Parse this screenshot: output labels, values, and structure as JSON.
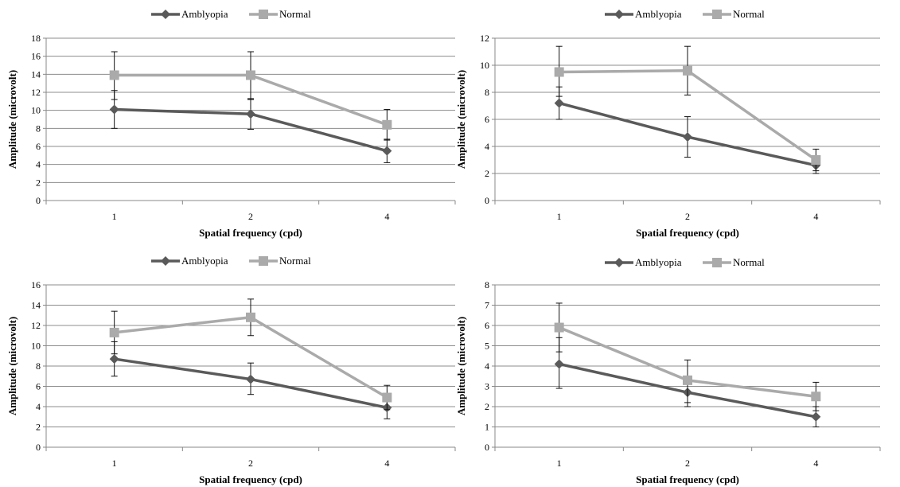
{
  "chart_data": [
    {
      "type": "line",
      "categories": [
        "1",
        "2",
        "4"
      ],
      "xlabel": "Spatial frequency (cpd)",
      "ylabel": "Amplitude (microvolt)",
      "ylim": [
        0,
        18
      ],
      "ystep": 2,
      "grid": true,
      "legend": "top",
      "series": [
        {
          "name": "Amblyopia",
          "color": "#5a5a5a",
          "marker": "diamond",
          "values": [
            10.1,
            9.6,
            5.5
          ],
          "err_high": [
            12.2,
            11.3,
            6.8
          ],
          "err_low": [
            8.0,
            7.9,
            4.2
          ]
        },
        {
          "name": "Normal",
          "color": "#aaaaaa",
          "marker": "square",
          "values": [
            13.9,
            13.9,
            8.4
          ],
          "err_high": [
            16.5,
            16.5,
            10.1
          ],
          "err_low": [
            11.2,
            11.2,
            6.7
          ]
        }
      ]
    },
    {
      "type": "line",
      "categories": [
        "1",
        "2",
        "4"
      ],
      "xlabel": "Spatial frequency (cpd)",
      "ylabel": "Amplitude (microvolt)",
      "ylim": [
        0,
        12
      ],
      "ystep": 2,
      "grid": true,
      "legend": "top",
      "series": [
        {
          "name": "Amblyopia",
          "color": "#5a5a5a",
          "marker": "diamond",
          "values": [
            7.2,
            4.7,
            2.6
          ],
          "err_high": [
            8.4,
            6.2,
            3.2
          ],
          "err_low": [
            6.0,
            3.2,
            2.0
          ]
        },
        {
          "name": "Normal",
          "color": "#aaaaaa",
          "marker": "square",
          "values": [
            9.5,
            9.6,
            3.0
          ],
          "err_high": [
            11.4,
            11.4,
            3.8
          ],
          "err_low": [
            7.7,
            7.8,
            2.2
          ]
        }
      ]
    },
    {
      "type": "line",
      "categories": [
        "1",
        "2",
        "4"
      ],
      "xlabel": "Spatial frequency (cpd)",
      "ylabel": "Amplitude (microvolt)",
      "ylim": [
        0,
        16
      ],
      "ystep": 2,
      "grid": true,
      "legend": "top",
      "series": [
        {
          "name": "Amblyopia",
          "color": "#5a5a5a",
          "marker": "diamond",
          "values": [
            8.7,
            6.7,
            3.9
          ],
          "err_high": [
            10.4,
            8.3,
            5.0
          ],
          "err_low": [
            7.0,
            5.2,
            2.8
          ]
        },
        {
          "name": "Normal",
          "color": "#aaaaaa",
          "marker": "square",
          "values": [
            11.3,
            12.8,
            4.9
          ],
          "err_high": [
            13.4,
            14.6,
            6.1
          ],
          "err_low": [
            9.2,
            11.0,
            3.7
          ]
        }
      ]
    },
    {
      "type": "line",
      "categories": [
        "1",
        "2",
        "4"
      ],
      "xlabel": "Spatial frequency (cpd)",
      "ylabel": "Amplitude (microvolt)",
      "ylim": [
        0,
        8
      ],
      "ystep": 1,
      "grid": true,
      "legend": "top",
      "series": [
        {
          "name": "Amblyopia",
          "color": "#5a5a5a",
          "marker": "diamond",
          "values": [
            4.1,
            2.7,
            1.5
          ],
          "err_high": [
            5.4,
            3.3,
            2.0
          ],
          "err_low": [
            2.9,
            2.0,
            1.0
          ]
        },
        {
          "name": "Normal",
          "color": "#aaaaaa",
          "marker": "square",
          "values": [
            5.9,
            3.3,
            2.5
          ],
          "err_high": [
            7.1,
            4.3,
            3.2
          ],
          "err_low": [
            4.7,
            2.2,
            1.8
          ]
        }
      ]
    }
  ]
}
